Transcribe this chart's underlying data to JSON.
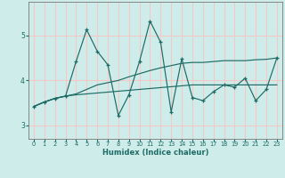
{
  "xlabel": "Humidex (Indice chaleur)",
  "xlim": [
    -0.5,
    23.5
  ],
  "ylim": [
    2.7,
    5.75
  ],
  "yticks": [
    3,
    4,
    5
  ],
  "xticks": [
    0,
    1,
    2,
    3,
    4,
    5,
    6,
    7,
    8,
    9,
    10,
    11,
    12,
    13,
    14,
    15,
    16,
    17,
    18,
    19,
    20,
    21,
    22,
    23
  ],
  "bg_color": "#ceecea",
  "grid_color": "#f5c8c8",
  "line_color": "#1e6b65",
  "lines": [
    {
      "x": [
        0,
        1,
        2,
        3,
        4,
        5,
        6,
        7,
        8,
        9,
        10,
        11,
        12,
        13,
        14,
        15,
        16,
        17,
        18,
        19,
        20,
        21,
        22,
        23
      ],
      "y": [
        3.42,
        3.52,
        3.6,
        3.65,
        3.68,
        3.7,
        3.72,
        3.74,
        3.76,
        3.78,
        3.8,
        3.82,
        3.84,
        3.86,
        3.88,
        3.9,
        3.9,
        3.9,
        3.9,
        3.9,
        3.9,
        3.9,
        3.9,
        3.9
      ],
      "marker": false
    },
    {
      "x": [
        0,
        1,
        2,
        3,
        4,
        5,
        6,
        7,
        8,
        9,
        10,
        11,
        12,
        13,
        14,
        15,
        16,
        17,
        18,
        19,
        20,
        21,
        22,
        23
      ],
      "y": [
        3.42,
        3.52,
        3.6,
        3.65,
        3.7,
        3.8,
        3.9,
        3.95,
        4.0,
        4.08,
        4.15,
        4.22,
        4.28,
        4.33,
        4.38,
        4.4,
        4.4,
        4.42,
        4.44,
        4.44,
        4.44,
        4.46,
        4.47,
        4.5
      ],
      "marker": false
    },
    {
      "x": [
        0,
        1,
        2,
        3,
        4,
        5,
        6,
        7,
        8,
        9,
        10,
        11,
        12,
        13,
        14,
        15,
        16,
        17,
        18,
        19,
        20,
        21,
        22,
        23
      ],
      "y": [
        3.42,
        3.52,
        3.6,
        3.65,
        4.42,
        5.13,
        4.65,
        4.35,
        3.22,
        3.68,
        4.42,
        5.32,
        4.85,
        3.3,
        4.48,
        3.62,
        3.55,
        3.75,
        3.9,
        3.85,
        4.05,
        3.55,
        3.8,
        4.5
      ],
      "marker": true
    }
  ]
}
